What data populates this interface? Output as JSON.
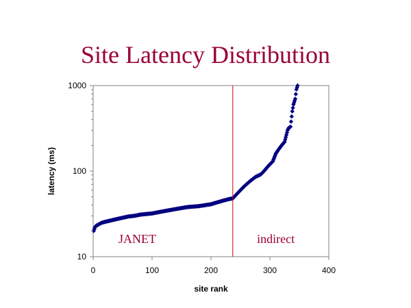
{
  "title": "Site Latency Distribution",
  "colors": {
    "title": "#990033",
    "points": "#000080",
    "divider": "#cc0000",
    "region_label": "#990033",
    "frame": "#808080"
  },
  "chart_data": {
    "type": "scatter",
    "title": "Site Latency Distribution",
    "xlabel": "site rank",
    "ylabel": "latency (ms)",
    "xlim": [
      0,
      400
    ],
    "ylim": [
      10,
      1000
    ],
    "y_scale": "log",
    "x_ticks": [
      "0",
      "100",
      "200",
      "300",
      "400"
    ],
    "y_ticks": [
      "10",
      "100",
      "1000"
    ],
    "grid": false,
    "legend": "none",
    "marker": "diamond",
    "divider_x": 237,
    "annotations": [
      {
        "text": "JANET",
        "x": 75,
        "y": 14.5
      },
      {
        "text": "indirect",
        "x": 310,
        "y": 14.5
      }
    ],
    "series": [
      {
        "x": [
          1,
          2,
          3,
          5,
          8,
          10,
          15,
          20,
          25,
          30,
          40,
          50,
          60,
          70,
          80,
          90,
          100,
          110,
          120,
          130,
          140,
          150,
          160,
          170,
          180,
          190,
          200,
          210,
          220,
          230,
          237,
          245,
          255,
          265,
          275,
          285,
          290,
          295,
          300,
          305,
          310,
          315,
          320,
          325,
          330,
          332,
          335,
          338,
          340,
          343,
          345,
          347
        ],
        "y": [
          20,
          21,
          22,
          23,
          23.5,
          24,
          25,
          25.5,
          26,
          26.5,
          27.5,
          28.5,
          29.5,
          30,
          31,
          31.5,
          32,
          33,
          34,
          35,
          36,
          37,
          38,
          38.5,
          39,
          40,
          41,
          43,
          45,
          47,
          48,
          55,
          65,
          75,
          85,
          92,
          100,
          110,
          120,
          130,
          160,
          180,
          200,
          220,
          300,
          320,
          330,
          500,
          600,
          700,
          900,
          1000
        ]
      }
    ]
  }
}
